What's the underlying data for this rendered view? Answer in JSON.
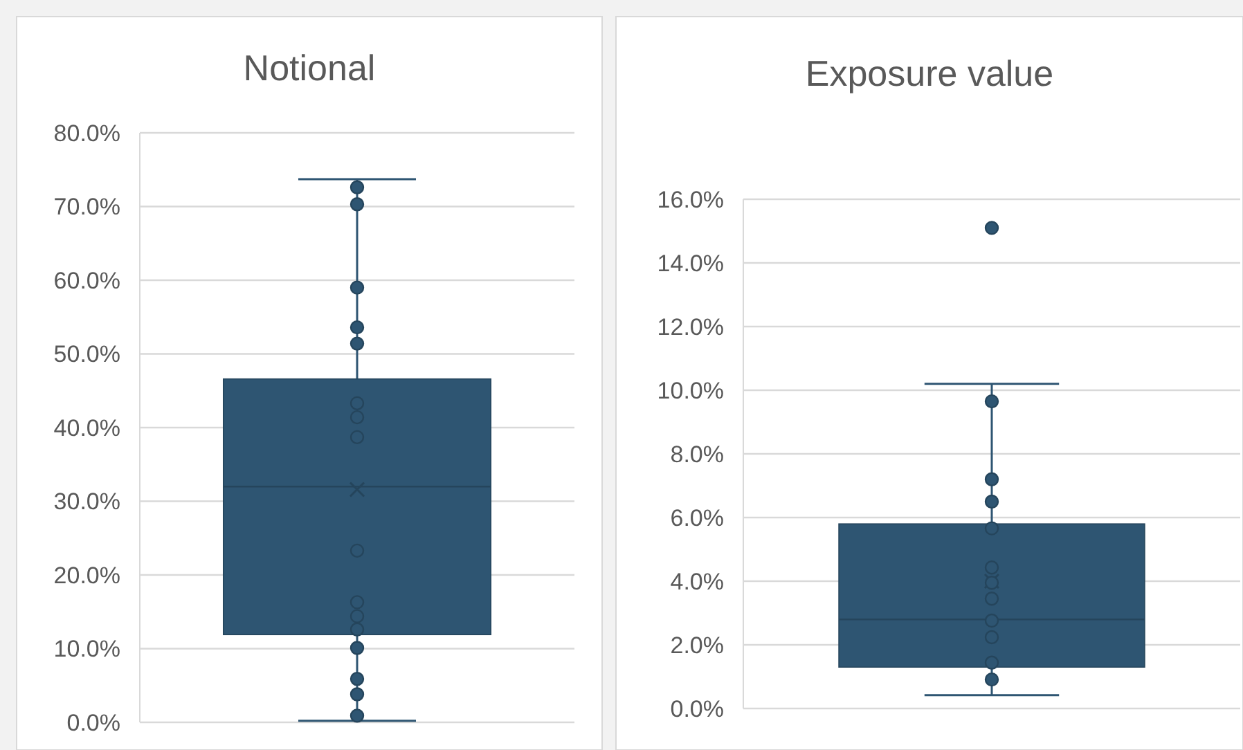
{
  "chart_data": [
    {
      "type": "box",
      "title": "Notional",
      "categories": [
        null
      ],
      "grid": "y",
      "marker": "circle",
      "ylim": [
        0,
        80
      ],
      "yticks": [
        {
          "value": 0,
          "label": "0.0%"
        },
        {
          "value": 10,
          "label": "10.0%"
        },
        {
          "value": 20,
          "label": "20.0%"
        },
        {
          "value": 30,
          "label": "30.0%"
        },
        {
          "value": 40,
          "label": "40.0%"
        },
        {
          "value": 50,
          "label": "50.0%"
        },
        {
          "value": 60,
          "label": "60.0%"
        },
        {
          "value": 70,
          "label": "70.0%"
        },
        {
          "value": 80,
          "label": "80.0%"
        }
      ],
      "series": [
        {
          "color": "#2e5572",
          "boxes": [
            {
              "low": 0.2,
              "q1": 11.9,
              "median": 32.0,
              "q3": 46.6,
              "high": 73.7,
              "mean": 31.6
            }
          ]
        },
        {
          "type": "scatter",
          "color": "#2e5572",
          "x": [
            null,
            null,
            null,
            null,
            null,
            null,
            null,
            null,
            null,
            null,
            null,
            null,
            null,
            null,
            null,
            null
          ],
          "values": [
            72.6,
            70.3,
            59.0,
            53.6,
            51.4,
            43.3,
            41.4,
            38.7,
            23.3,
            16.3,
            14.4,
            12.6,
            10.1,
            5.9,
            3.8,
            0.9
          ]
        }
      ]
    },
    {
      "type": "box",
      "title": "Exposure value",
      "categories": [
        null
      ],
      "grid": "y",
      "marker": "circle",
      "ylim": [
        0,
        16
      ],
      "yticks": [
        {
          "value": 0,
          "label": "0.0%"
        },
        {
          "value": 2,
          "label": "2.0%"
        },
        {
          "value": 4,
          "label": "4.0%"
        },
        {
          "value": 6,
          "label": "6.0%"
        },
        {
          "value": 8,
          "label": "8.0%"
        },
        {
          "value": 10,
          "label": "10.0%"
        },
        {
          "value": 12,
          "label": "12.0%"
        },
        {
          "value": 14,
          "label": "14.0%"
        },
        {
          "value": 16,
          "label": "16.0%"
        }
      ],
      "series": [
        {
          "color": "#2e5572",
          "boxes": [
            {
              "low": 0.42,
              "q1": 1.3,
              "median": 2.8,
              "q3": 5.8,
              "high": 10.2,
              "mean": 4.0,
              "outliers": [
                15.1
              ]
            }
          ]
        },
        {
          "type": "scatter",
          "color": "#2e5572",
          "x": [
            null,
            null,
            null,
            null,
            null,
            null,
            null,
            null,
            null,
            null,
            null
          ],
          "values": [
            9.65,
            7.2,
            6.5,
            5.66,
            4.43,
            3.95,
            3.45,
            2.76,
            2.24,
            1.44,
            0.91
          ]
        }
      ]
    }
  ]
}
